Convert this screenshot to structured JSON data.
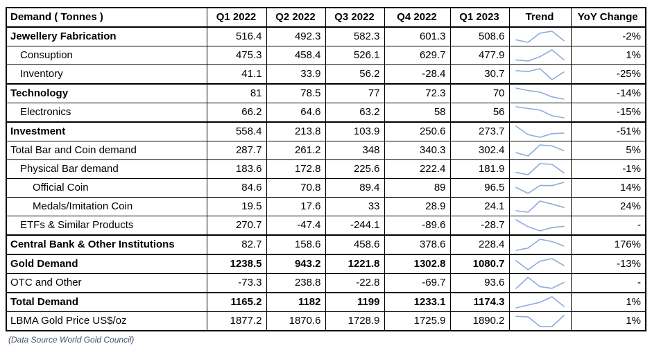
{
  "table": {
    "header": [
      "Demand ( Tonnes )",
      "Q1 2022",
      "Q2 2022",
      "Q3 2022",
      "Q4 2022",
      "Q1 2023",
      "Trend",
      "YoY Change"
    ],
    "rows": [
      {
        "label": "Jewellery Fabrication",
        "bold": true,
        "bold_values": false,
        "indent": 0,
        "thick_top": true,
        "values": [
          "516.4",
          "492.3",
          "582.3",
          "601.3",
          "508.6"
        ],
        "yoy": "-2%"
      },
      {
        "label": "Consuption",
        "bold": false,
        "bold_values": false,
        "indent": 1,
        "thick_top": false,
        "values": [
          "475.3",
          "458.4",
          "526.1",
          "629.7",
          "477.9"
        ],
        "yoy": "1%"
      },
      {
        "label": "Inventory",
        "bold": false,
        "bold_values": false,
        "indent": 1,
        "thick_top": false,
        "values": [
          "41.1",
          "33.9",
          "56.2",
          "-28.4",
          "30.7"
        ],
        "yoy": "-25%"
      },
      {
        "label": "Technology",
        "bold": true,
        "bold_values": false,
        "indent": 0,
        "thick_top": true,
        "values": [
          "81",
          "78.5",
          "77",
          "72.3",
          "70"
        ],
        "yoy": "-14%"
      },
      {
        "label": "Electronics",
        "bold": false,
        "bold_values": false,
        "indent": 1,
        "thick_top": false,
        "values": [
          "66.2",
          "64.6",
          "63.2",
          "58",
          "56"
        ],
        "yoy": "-15%"
      },
      {
        "label": "Investment",
        "bold": true,
        "bold_values": false,
        "indent": 0,
        "thick_top": true,
        "values": [
          "558.4",
          "213.8",
          "103.9",
          "250.6",
          "273.7"
        ],
        "yoy": "-51%"
      },
      {
        "label": "Total Bar and Coin demand",
        "bold": false,
        "bold_values": false,
        "indent": 0,
        "thick_top": false,
        "values": [
          "287.7",
          "261.2",
          "348",
          "340.3",
          "302.4"
        ],
        "yoy": "5%"
      },
      {
        "label": "Physical Bar demand",
        "bold": false,
        "bold_values": false,
        "indent": 1,
        "thick_top": false,
        "values": [
          "183.6",
          "172.8",
          "225.6",
          "222.4",
          "181.9"
        ],
        "yoy": "-1%"
      },
      {
        "label": "Official Coin",
        "bold": false,
        "bold_values": false,
        "indent": 2,
        "thick_top": false,
        "values": [
          "84.6",
          "70.8",
          "89.4",
          "89",
          "96.5"
        ],
        "yoy": "14%"
      },
      {
        "label": "Medals/Imitation Coin",
        "bold": false,
        "bold_values": false,
        "indent": 2,
        "thick_top": false,
        "values": [
          "19.5",
          "17.6",
          "33",
          "28.9",
          "24.1"
        ],
        "yoy": "24%"
      },
      {
        "label": "ETFs & Similar Products",
        "bold": false,
        "bold_values": false,
        "indent": 1,
        "thick_top": false,
        "values": [
          "270.7",
          "-47.4",
          "-244.1",
          "-89.6",
          "-28.7"
        ],
        "yoy": "-"
      },
      {
        "label": "Central Bank & Other Institutions",
        "bold": true,
        "bold_values": false,
        "indent": 0,
        "thick_top": true,
        "values": [
          "82.7",
          "158.6",
          "458.6",
          "378.6",
          "228.4"
        ],
        "yoy": "176%"
      },
      {
        "label": "Gold Demand",
        "bold": true,
        "bold_values": true,
        "indent": 0,
        "thick_top": true,
        "values": [
          "1238.5",
          "943.2",
          "1221.8",
          "1302.8",
          "1080.7"
        ],
        "yoy": "-13%"
      },
      {
        "label": "OTC and Other",
        "bold": false,
        "bold_values": false,
        "indent": 0,
        "thick_top": false,
        "values": [
          "-73.3",
          "238.8",
          "-22.8",
          "-69.7",
          "93.6"
        ],
        "yoy": "-"
      },
      {
        "label": "Total Demand",
        "bold": true,
        "bold_values": true,
        "indent": 0,
        "thick_top": true,
        "values": [
          "1165.2",
          "1182",
          "1199",
          "1233.1",
          "1174.3"
        ],
        "yoy": "1%"
      },
      {
        "label": "LBMA Gold Price US$/oz",
        "bold": false,
        "bold_values": false,
        "indent": 0,
        "thick_top": false,
        "values": [
          "1877.2",
          "1870.6",
          "1728.9",
          "1725.9",
          "1890.2"
        ],
        "yoy": "1%"
      }
    ]
  },
  "footer": "(Data Source World Gold Council)",
  "colors": {
    "sparkline": "#8FAADC",
    "border": "#000000",
    "footer_text": "#44546A"
  },
  "chart_data": {
    "type": "table",
    "title": "Demand ( Tonnes )",
    "categories": [
      "Q1 2022",
      "Q2 2022",
      "Q3 2022",
      "Q4 2022",
      "Q1 2023"
    ],
    "series": [
      {
        "name": "Jewellery Fabrication",
        "values": [
          516.4,
          492.3,
          582.3,
          601.3,
          508.6
        ],
        "yoy_change": "-2%"
      },
      {
        "name": "Consuption",
        "values": [
          475.3,
          458.4,
          526.1,
          629.7,
          477.9
        ],
        "yoy_change": "1%"
      },
      {
        "name": "Inventory",
        "values": [
          41.1,
          33.9,
          56.2,
          -28.4,
          30.7
        ],
        "yoy_change": "-25%"
      },
      {
        "name": "Technology",
        "values": [
          81,
          78.5,
          77,
          72.3,
          70
        ],
        "yoy_change": "-14%"
      },
      {
        "name": "Electronics",
        "values": [
          66.2,
          64.6,
          63.2,
          58,
          56
        ],
        "yoy_change": "-15%"
      },
      {
        "name": "Investment",
        "values": [
          558.4,
          213.8,
          103.9,
          250.6,
          273.7
        ],
        "yoy_change": "-51%"
      },
      {
        "name": "Total Bar and Coin demand",
        "values": [
          287.7,
          261.2,
          348,
          340.3,
          302.4
        ],
        "yoy_change": "5%"
      },
      {
        "name": "Physical Bar demand",
        "values": [
          183.6,
          172.8,
          225.6,
          222.4,
          181.9
        ],
        "yoy_change": "-1%"
      },
      {
        "name": "Official Coin",
        "values": [
          84.6,
          70.8,
          89.4,
          89,
          96.5
        ],
        "yoy_change": "14%"
      },
      {
        "name": "Medals/Imitation Coin",
        "values": [
          19.5,
          17.6,
          33,
          28.9,
          24.1
        ],
        "yoy_change": "24%"
      },
      {
        "name": "ETFs & Similar Products",
        "values": [
          270.7,
          -47.4,
          -244.1,
          -89.6,
          -28.7
        ],
        "yoy_change": "-"
      },
      {
        "name": "Central Bank & Other Institutions",
        "values": [
          82.7,
          158.6,
          458.6,
          378.6,
          228.4
        ],
        "yoy_change": "176%"
      },
      {
        "name": "Gold Demand",
        "values": [
          1238.5,
          943.2,
          1221.8,
          1302.8,
          1080.7
        ],
        "yoy_change": "-13%"
      },
      {
        "name": "OTC and Other",
        "values": [
          -73.3,
          238.8,
          -22.8,
          -69.7,
          93.6
        ],
        "yoy_change": "-"
      },
      {
        "name": "Total Demand",
        "values": [
          1165.2,
          1182,
          1199,
          1233.1,
          1174.3
        ],
        "yoy_change": "1%"
      },
      {
        "name": "LBMA Gold Price US$/oz",
        "values": [
          1877.2,
          1870.6,
          1728.9,
          1725.9,
          1890.2
        ],
        "yoy_change": "1%"
      }
    ],
    "trend_column": "min-max normalized line sparkline per row over the five quarters",
    "legend_position": "none",
    "grid": true
  }
}
